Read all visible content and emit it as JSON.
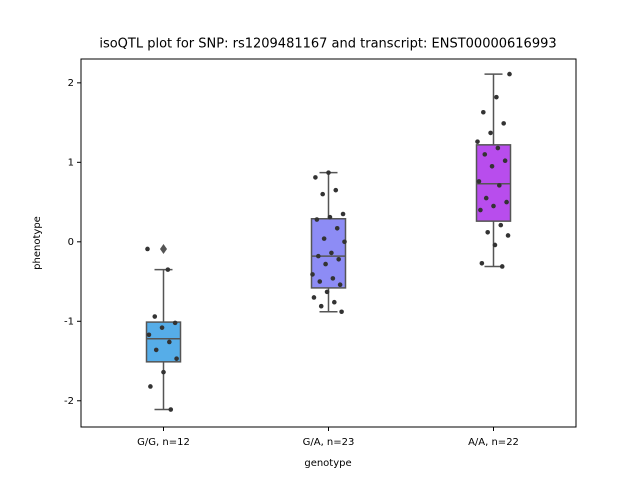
{
  "chart_data": {
    "type": "box",
    "title": "isoQTL plot for SNP: rs1209481167 and transcript: ENST00000616993",
    "xlabel": "genotype",
    "ylabel": "phenotype",
    "categories": [
      "G/G, n=12",
      "G/A, n=23",
      "A/A, n=22"
    ],
    "ylim": [
      -2.33,
      2.3
    ],
    "yticks": [
      -2,
      -1,
      0,
      1,
      2
    ],
    "point_color": "#333333",
    "boxes": [
      {
        "color": "#56ade8",
        "min": -2.11,
        "q1": -1.51,
        "median": -1.22,
        "q3": -1.01,
        "max": -0.35,
        "outliers": [
          -0.09
        ],
        "points": [
          -0.09,
          -0.35,
          -0.94,
          -1.02,
          -1.08,
          -1.17,
          -1.26,
          -1.36,
          -1.47,
          -1.64,
          -1.82,
          -2.11
        ]
      },
      {
        "color": "#8d8cf5",
        "min": -0.88,
        "q1": -0.58,
        "median": -0.18,
        "q3": 0.29,
        "max": 0.87,
        "outliers": [],
        "points": [
          0.87,
          0.81,
          0.65,
          0.6,
          0.35,
          0.31,
          0.28,
          0.17,
          0.04,
          0.0,
          -0.14,
          -0.18,
          -0.22,
          -0.28,
          -0.41,
          -0.46,
          -0.5,
          -0.54,
          -0.63,
          -0.7,
          -0.76,
          -0.81,
          -0.88
        ]
      },
      {
        "color": "#b84ded",
        "min": -0.31,
        "q1": 0.26,
        "median": 0.73,
        "q3": 1.22,
        "max": 2.11,
        "outliers": [],
        "points": [
          2.11,
          1.82,
          1.63,
          1.49,
          1.37,
          1.26,
          1.18,
          1.1,
          1.02,
          0.95,
          0.76,
          0.71,
          0.55,
          0.5,
          0.45,
          0.4,
          0.21,
          0.12,
          0.08,
          -0.04,
          -0.27,
          -0.31
        ]
      }
    ]
  }
}
